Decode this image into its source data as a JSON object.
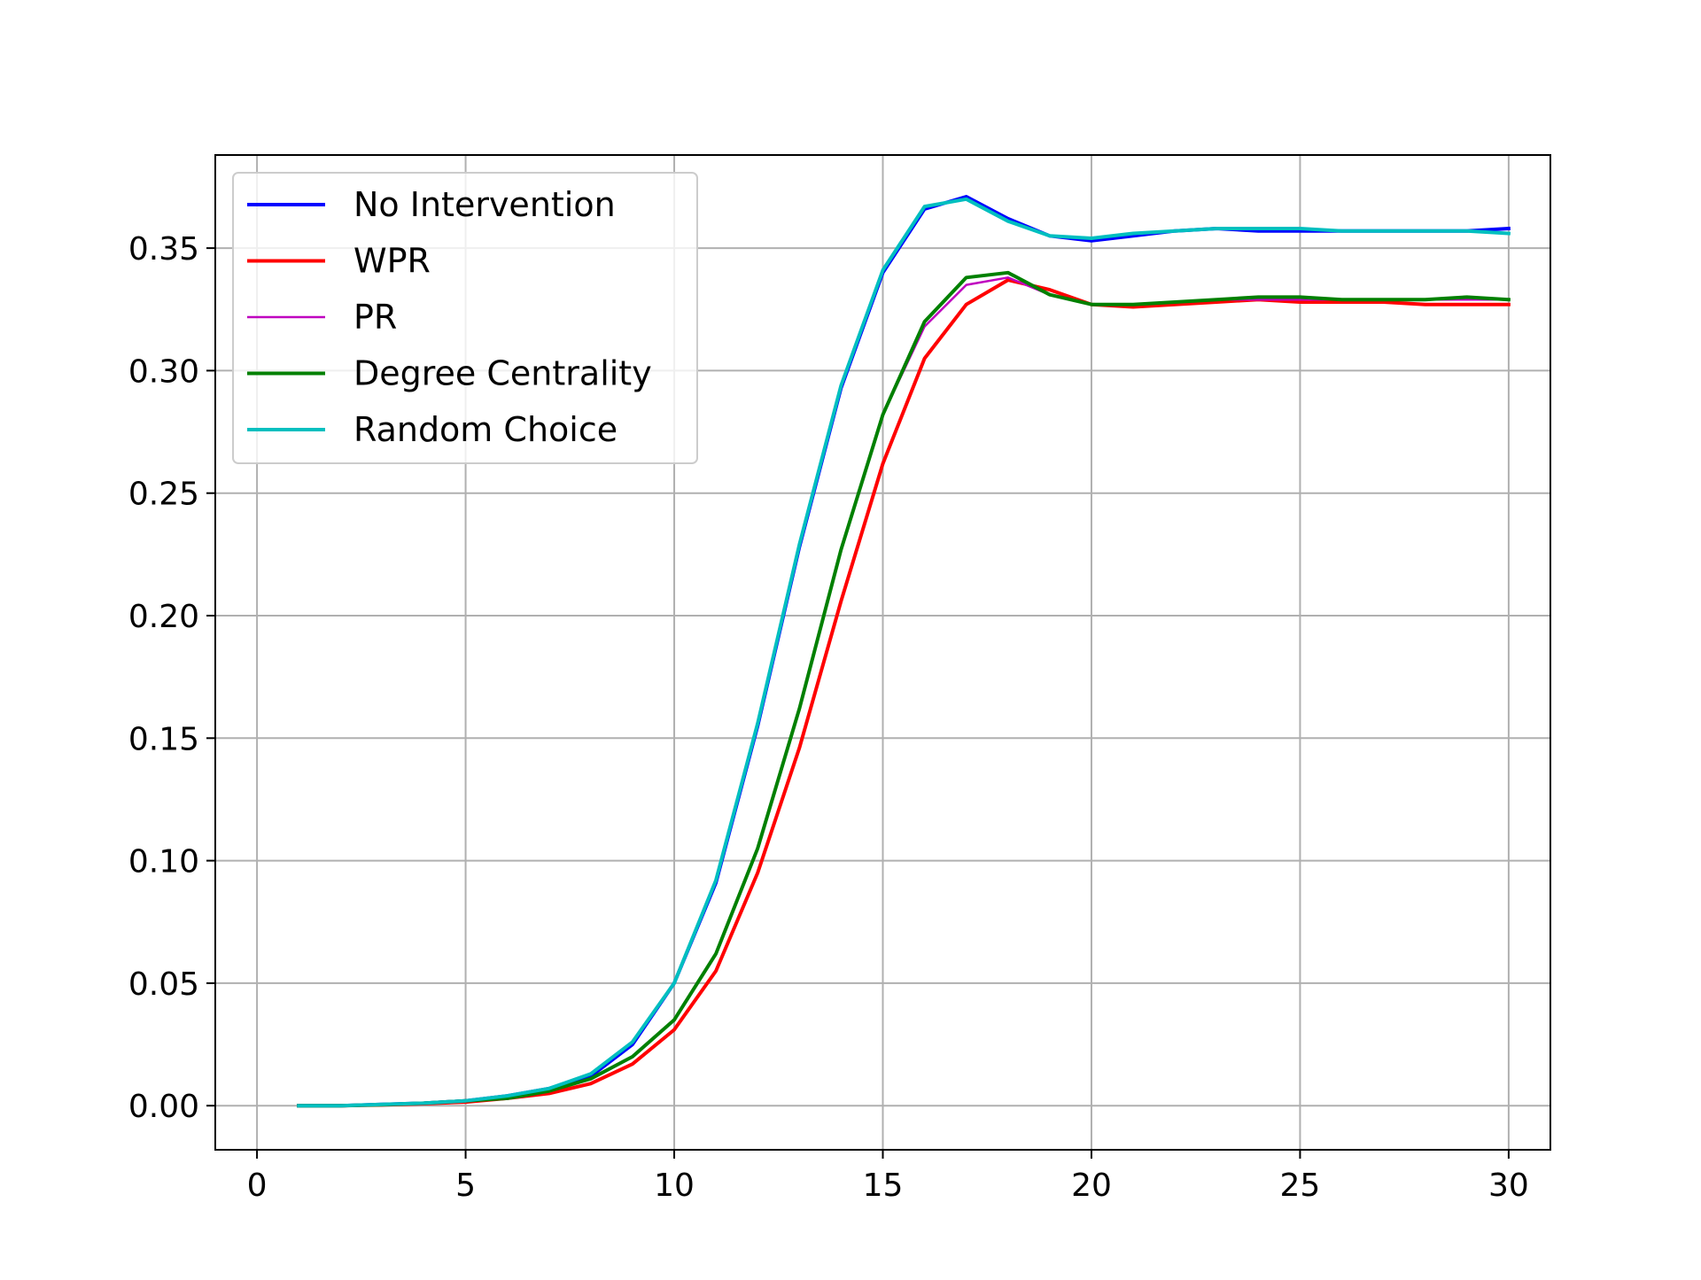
{
  "chart_data": {
    "type": "line",
    "title": "",
    "xlabel": "",
    "ylabel": "",
    "xlim": [
      -1,
      31
    ],
    "ylim": [
      -0.018,
      0.388
    ],
    "grid": true,
    "legend_position": "top-left",
    "x_ticks": [
      0,
      5,
      10,
      15,
      20,
      25,
      30
    ],
    "x_tick_labels": [
      "0",
      "5",
      "10",
      "15",
      "20",
      "25",
      "30"
    ],
    "y_ticks": [
      0.0,
      0.05,
      0.1,
      0.15,
      0.2,
      0.25,
      0.3,
      0.35
    ],
    "y_tick_labels": [
      "0.00",
      "0.05",
      "0.10",
      "0.15",
      "0.20",
      "0.25",
      "0.30",
      "0.35"
    ],
    "x": [
      1,
      2,
      3,
      4,
      5,
      6,
      7,
      8,
      9,
      10,
      11,
      12,
      13,
      14,
      15,
      16,
      17,
      18,
      19,
      20,
      21,
      22,
      23,
      24,
      25,
      26,
      27,
      28,
      29,
      30
    ],
    "series": [
      {
        "name": "No Intervention",
        "color": "#0000ff",
        "values": [
          0.0,
          0.0,
          0.0005,
          0.001,
          0.002,
          0.004,
          0.007,
          0.012,
          0.025,
          0.05,
          0.091,
          0.155,
          0.228,
          0.293,
          0.34,
          0.366,
          0.371,
          0.362,
          0.355,
          0.353,
          0.355,
          0.357,
          0.358,
          0.357,
          0.357,
          0.357,
          0.357,
          0.357,
          0.357,
          0.358
        ]
      },
      {
        "name": "WPR",
        "color": "#ff0000",
        "values": [
          0.0,
          0.0,
          0.0003,
          0.0008,
          0.0015,
          0.003,
          0.005,
          0.009,
          0.017,
          0.031,
          0.055,
          0.095,
          0.146,
          0.206,
          0.262,
          0.305,
          0.327,
          0.337,
          0.333,
          0.327,
          0.326,
          0.327,
          0.328,
          0.329,
          0.328,
          0.328,
          0.328,
          0.327,
          0.327,
          0.327
        ]
      },
      {
        "name": "PR",
        "color": "#bf00bf",
        "values": [
          0.0,
          0.0,
          0.0004,
          0.001,
          0.002,
          0.003,
          0.006,
          0.011,
          0.02,
          0.035,
          0.062,
          0.105,
          0.162,
          0.227,
          0.282,
          0.318,
          0.335,
          0.338,
          0.331,
          0.327,
          0.327,
          0.328,
          0.329,
          0.329,
          0.329,
          0.329,
          0.329,
          0.329,
          0.329,
          0.329
        ]
      },
      {
        "name": "Degree Centrality",
        "color": "#008000",
        "values": [
          0.0,
          0.0,
          0.0004,
          0.001,
          0.002,
          0.003,
          0.006,
          0.011,
          0.02,
          0.035,
          0.062,
          0.105,
          0.162,
          0.227,
          0.282,
          0.32,
          0.338,
          0.34,
          0.331,
          0.327,
          0.327,
          0.328,
          0.329,
          0.33,
          0.33,
          0.329,
          0.329,
          0.329,
          0.33,
          0.329
        ]
      },
      {
        "name": "Random Choice",
        "color": "#00bfbf",
        "values": [
          0.0,
          0.0,
          0.0005,
          0.001,
          0.002,
          0.004,
          0.007,
          0.013,
          0.026,
          0.05,
          0.092,
          0.156,
          0.229,
          0.294,
          0.341,
          0.367,
          0.37,
          0.361,
          0.355,
          0.354,
          0.356,
          0.357,
          0.358,
          0.358,
          0.358,
          0.357,
          0.357,
          0.357,
          0.357,
          0.356
        ]
      }
    ]
  }
}
